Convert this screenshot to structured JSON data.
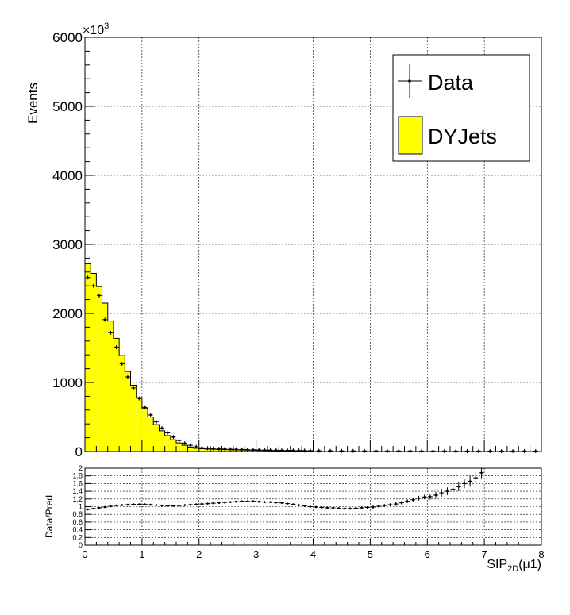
{
  "chart_data": [
    {
      "type": "bar",
      "title": "",
      "xlabel": "",
      "ylabel": "Events",
      "y_exponent_label": "×10",
      "y_exponent_power": "3",
      "xlim": [
        0,
        8
      ],
      "ylim": [
        0,
        6000
      ],
      "y_ticks": [
        0,
        1000,
        2000,
        3000,
        4000,
        5000,
        6000
      ],
      "y_tick_labels": [
        "0",
        "1000",
        "2000",
        "3000",
        "4000",
        "5000",
        "6000"
      ],
      "grid": true,
      "legend_position": "top-right",
      "bin_width": 0.1,
      "series": [
        {
          "name": "DYJets",
          "kind": "filled-histogram",
          "color": "#ffff00",
          "x": [
            0.05,
            0.15,
            0.25,
            0.35,
            0.45,
            0.55,
            0.65,
            0.75,
            0.85,
            0.95,
            1.05,
            1.15,
            1.25,
            1.35,
            1.45,
            1.55,
            1.65,
            1.75,
            1.85,
            1.95,
            2.05,
            2.15,
            2.25,
            2.35,
            2.45,
            2.55,
            2.65,
            2.75,
            2.85,
            2.95,
            3.05,
            3.15,
            3.25,
            3.35,
            3.45,
            3.55,
            3.65,
            3.75,
            3.85,
            3.95
          ],
          "values": [
            2720,
            2580,
            2390,
            2150,
            1890,
            1640,
            1390,
            1160,
            960,
            780,
            630,
            500,
            390,
            300,
            230,
            170,
            125,
            90,
            65,
            48,
            40,
            36,
            33,
            30,
            28,
            26,
            24,
            22,
            20,
            18,
            16,
            14,
            13,
            12,
            11,
            10,
            9,
            8,
            7,
            6
          ]
        },
        {
          "name": "Data",
          "kind": "points-with-errors",
          "color": "#000000",
          "x": [
            0.05,
            0.15,
            0.25,
            0.35,
            0.45,
            0.55,
            0.65,
            0.75,
            0.85,
            0.95,
            1.05,
            1.15,
            1.25,
            1.35,
            1.45,
            1.55,
            1.65,
            1.75,
            1.85,
            1.95,
            2.05,
            2.15,
            2.25,
            2.35,
            2.45,
            2.55,
            2.65,
            2.75,
            2.85,
            2.95,
            3.05,
            3.15,
            3.25,
            3.35,
            3.45,
            3.55,
            3.65,
            3.75,
            3.85,
            3.95,
            4.1,
            4.3,
            4.5,
            4.7,
            4.9,
            5.1,
            5.3,
            5.5,
            5.7,
            5.9,
            6.1,
            6.3,
            6.5,
            6.7,
            6.9,
            7.1,
            7.3,
            7.5,
            7.7,
            7.9
          ],
          "values": [
            2520,
            2400,
            2260,
            1910,
            1720,
            1510,
            1270,
            1080,
            920,
            770,
            640,
            530,
            430,
            340,
            270,
            210,
            160,
            120,
            90,
            70,
            55,
            48,
            44,
            40,
            37,
            34,
            32,
            30,
            28,
            26,
            24,
            22,
            20,
            19,
            18,
            17,
            16,
            15,
            14,
            13,
            12,
            11,
            10,
            10,
            9,
            9,
            8,
            8,
            8,
            7,
            7,
            7,
            6,
            6,
            6,
            6,
            6,
            6,
            6,
            6
          ]
        }
      ],
      "legend": [
        "Data",
        "DYJets"
      ]
    },
    {
      "type": "scatter",
      "title": "",
      "xlabel": "SIP",
      "xlabel_subscript": "2D",
      "xlabel_suffix": "(μ1)",
      "ylabel": "Data/Pred",
      "xlim": [
        0,
        8
      ],
      "ylim": [
        0,
        2
      ],
      "x_ticks": [
        0,
        1,
        2,
        3,
        4,
        5,
        6,
        7,
        8
      ],
      "x_tick_labels": [
        "0",
        "1",
        "2",
        "3",
        "4",
        "5",
        "6",
        "7",
        "8"
      ],
      "y_ticks": [
        0,
        0.2,
        0.4,
        0.6,
        0.8,
        1,
        1.2,
        1.4,
        1.6,
        1.8,
        2
      ],
      "y_tick_labels": [
        "0",
        "0.2",
        "0.4",
        "0.6",
        "0.8",
        "1",
        "1.2",
        "1.4",
        "1.6",
        "1.8",
        "2"
      ],
      "grid": true,
      "series": [
        {
          "x": [
            0.05,
            0.15,
            0.25,
            0.35,
            0.45,
            0.55,
            0.65,
            0.75,
            0.85,
            0.95,
            1.05,
            1.15,
            1.25,
            1.35,
            1.45,
            1.55,
            1.65,
            1.75,
            1.85,
            1.95,
            2.05,
            2.15,
            2.25,
            2.35,
            2.45,
            2.55,
            2.65,
            2.75,
            2.85,
            2.95,
            3.05,
            3.15,
            3.25,
            3.35,
            3.45,
            3.55,
            3.65,
            3.75,
            3.85,
            3.95,
            4.05,
            4.15,
            4.25,
            4.35,
            4.45,
            4.55,
            4.65,
            4.75,
            4.85,
            4.95,
            5.05,
            5.15,
            5.25,
            5.35,
            5.45,
            5.55,
            5.65,
            5.75,
            5.85,
            5.95,
            6.05,
            6.15,
            6.25,
            6.35,
            6.45,
            6.55,
            6.65,
            6.75,
            6.85,
            6.95
          ],
          "values": [
            0.93,
            0.95,
            0.97,
            0.99,
            1.01,
            1.03,
            1.04,
            1.05,
            1.06,
            1.06,
            1.06,
            1.05,
            1.04,
            1.03,
            1.02,
            1.02,
            1.03,
            1.04,
            1.05,
            1.06,
            1.07,
            1.08,
            1.09,
            1.1,
            1.11,
            1.12,
            1.13,
            1.14,
            1.14,
            1.14,
            1.13,
            1.12,
            1.12,
            1.11,
            1.1,
            1.08,
            1.06,
            1.04,
            1.02,
            1.0,
            0.99,
            0.98,
            0.97,
            0.97,
            0.96,
            0.95,
            0.95,
            0.96,
            0.97,
            0.98,
            0.99,
            1.01,
            1.03,
            1.05,
            1.07,
            1.1,
            1.14,
            1.18,
            1.22,
            1.25,
            1.26,
            1.3,
            1.36,
            1.4,
            1.45,
            1.52,
            1.6,
            1.66,
            1.75,
            1.88
          ],
          "errors": [
            0.01,
            0.01,
            0.01,
            0.01,
            0.01,
            0.01,
            0.01,
            0.01,
            0.01,
            0.01,
            0.01,
            0.01,
            0.01,
            0.01,
            0.01,
            0.01,
            0.01,
            0.01,
            0.01,
            0.01,
            0.01,
            0.01,
            0.01,
            0.01,
            0.01,
            0.01,
            0.01,
            0.01,
            0.01,
            0.01,
            0.02,
            0.02,
            0.02,
            0.02,
            0.02,
            0.02,
            0.02,
            0.02,
            0.02,
            0.02,
            0.02,
            0.02,
            0.02,
            0.02,
            0.02,
            0.02,
            0.03,
            0.03,
            0.03,
            0.03,
            0.04,
            0.04,
            0.04,
            0.04,
            0.05,
            0.05,
            0.05,
            0.06,
            0.06,
            0.06,
            0.08,
            0.08,
            0.1,
            0.1,
            0.12,
            0.12,
            0.12,
            0.14,
            0.14,
            0.14
          ]
        }
      ]
    }
  ]
}
